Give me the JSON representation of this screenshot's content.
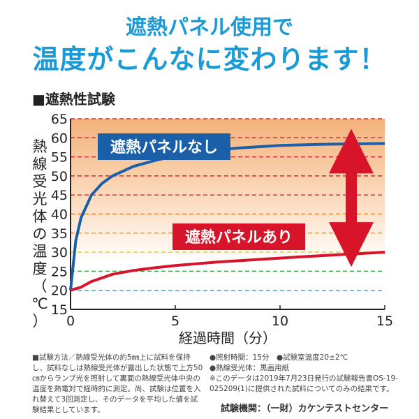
{
  "header": {
    "line1": "遮熱パネル使用で",
    "line2": "温度がこんなに変わります！"
  },
  "section_title": "■遮熱性試験",
  "notes": {
    "method": "■試験方法／熱線受光体の約5㎜上に試料を保持し、試料なしは熱線受光体が露出した状態で上方50㎝からランプ光を照射して裏面の熱線受光体中央の温度を熱電対で経時的に測定。尚、試験は位置を入れ替えて3回測定し、そのデータを平均した値を試験結果としています。",
    "conditions": "●照射時間：15分　●試験室温度20±2℃",
    "receiver": "●熱線受光体：黒画用紙",
    "disclaimer": "※このデータは2019年7月23日発行の試験報告書OS-19-025209(1)に提供された試料についてのみの結果です。",
    "lab": "試験機関：（一財）カケンテストセンター"
  },
  "chart_data": {
    "type": "line",
    "title": "遮熱性試験",
    "xlabel": "経過時間（分）",
    "ylabel": "熱線受光体の温度（℃）",
    "xlim": [
      0,
      15
    ],
    "ylim": [
      15,
      65
    ],
    "xticks": [
      0,
      5,
      10,
      15
    ],
    "yticks": [
      15,
      20,
      25,
      30,
      35,
      40,
      45,
      50,
      55,
      60,
      65
    ],
    "grid": true,
    "series": [
      {
        "name": "遮熱パネルなし",
        "color": "#1a5fa8",
        "x": [
          0,
          0.25,
          0.5,
          1,
          1.5,
          2,
          3,
          4,
          5,
          6,
          8,
          10,
          12,
          15
        ],
        "y": [
          20,
          33,
          39,
          45,
          48,
          50,
          52.5,
          54,
          55.3,
          56.3,
          57.3,
          58,
          58.3,
          58.5
        ]
      },
      {
        "name": "遮熱パネルあり",
        "color": "#d7142a",
        "x": [
          0,
          0.5,
          1,
          2,
          3,
          4,
          5,
          7,
          9,
          11,
          13,
          15
        ],
        "y": [
          20,
          20.8,
          22.3,
          24.2,
          25.2,
          25.9,
          26.5,
          27.4,
          28.1,
          28.8,
          29.4,
          30
        ]
      }
    ],
    "annotations": [
      "difference arrow between curves at ~14 min"
    ]
  }
}
